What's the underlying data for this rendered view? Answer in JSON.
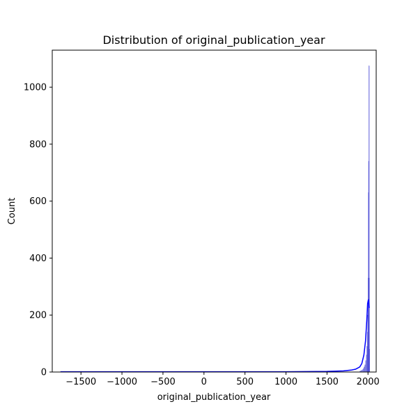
{
  "chart_data": {
    "type": "histogram",
    "title": "Distribution of original_publication_year",
    "xlabel": "original_publication_year",
    "ylabel": "Count",
    "xlim": [
      -1850,
      2100
    ],
    "ylim": [
      0,
      1130
    ],
    "xticks": [
      -1500,
      -1000,
      -500,
      0,
      500,
      1000,
      1500,
      2000
    ],
    "xtick_labels": [
      "−1500",
      "−1000",
      "−500",
      "0",
      "500",
      "1000",
      "1500",
      "2000"
    ],
    "yticks": [
      0,
      200,
      400,
      600,
      800,
      1000
    ],
    "ytick_labels": [
      "0",
      "200",
      "400",
      "600",
      "800",
      "1000"
    ],
    "grid": false,
    "bar_color": "#4b4bd6",
    "kde_color": "#0000ff",
    "bins": [
      {
        "x0": 1900,
        "x1": 1910,
        "count": 3
      },
      {
        "x0": 1910,
        "x1": 1920,
        "count": 4
      },
      {
        "x0": 1920,
        "x1": 1930,
        "count": 6
      },
      {
        "x0": 1930,
        "x1": 1940,
        "count": 8
      },
      {
        "x0": 1940,
        "x1": 1950,
        "count": 12
      },
      {
        "x0": 1950,
        "x1": 1960,
        "count": 18
      },
      {
        "x0": 1960,
        "x1": 1970,
        "count": 25
      },
      {
        "x0": 1970,
        "x1": 1980,
        "count": 40
      },
      {
        "x0": 1980,
        "x1": 1985,
        "count": 60
      },
      {
        "x0": 1985,
        "x1": 1990,
        "count": 90
      },
      {
        "x0": 1990,
        "x1": 1995,
        "count": 140
      },
      {
        "x0": 1995,
        "x1": 2000,
        "count": 200
      },
      {
        "x0": 2000,
        "x1": 2003,
        "count": 330
      },
      {
        "x0": 2003,
        "x1": 2006,
        "count": 630
      },
      {
        "x0": 2006,
        "x1": 2009,
        "count": 740
      },
      {
        "x0": 2009,
        "x1": 2012,
        "count": 1075
      },
      {
        "x0": 2012,
        "x1": 2015,
        "count": 330
      },
      {
        "x0": 2015,
        "x1": 2018,
        "count": 80
      }
    ],
    "kde": {
      "x": [
        -1750,
        -1000,
        0,
        1000,
        1500,
        1700,
        1800,
        1850,
        1900,
        1925,
        1950,
        1970,
        1985,
        1995,
        2005,
        2015
      ],
      "y": [
        1,
        1,
        1,
        1,
        2,
        4,
        7,
        10,
        18,
        30,
        60,
        110,
        180,
        240,
        255,
        225
      ]
    }
  }
}
